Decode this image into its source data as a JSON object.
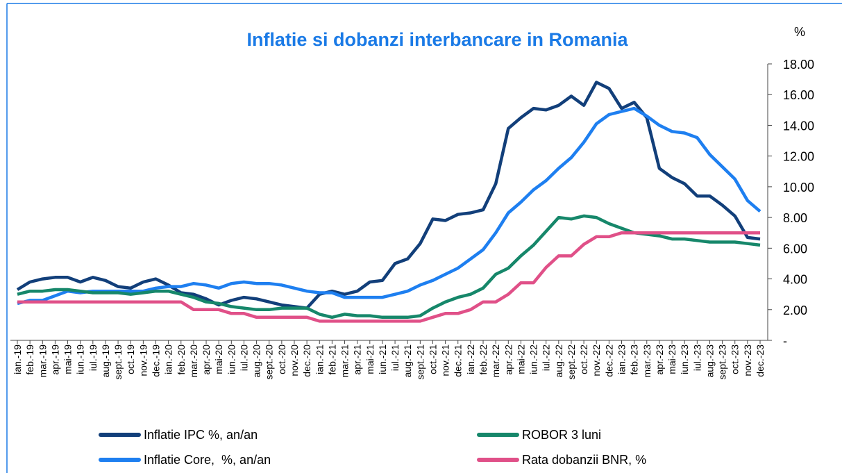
{
  "chart_data": {
    "type": "line",
    "title": "Inflatie si dobanzi interbancare in Romania",
    "ylabel": "%",
    "categories": [
      "ian.-19",
      "feb.-19",
      "mar.-19",
      "apr.-19",
      "mai-19",
      "iun.-19",
      "iul.-19",
      "aug.-19",
      "sept.-19",
      "oct.-19",
      "nov.-19",
      "dec.-19",
      "ian.-20",
      "feb.-20",
      "mar.-20",
      "apr.-20",
      "mai-20",
      "iun.-20",
      "iul.-20",
      "aug.-20",
      "sept.-20",
      "oct.-20",
      "nov.-20",
      "dec.-20",
      "ian.-21",
      "feb.-21",
      "mar.-21",
      "apr.-21",
      "mai-21",
      "iun.-21",
      "iul.-21",
      "aug.-21",
      "sept.-21",
      "oct.-21",
      "nov.-21",
      "dec.-21",
      "ian.-22",
      "feb.-22",
      "mar.-22",
      "apr.-22",
      "mai-22",
      "iun.-22",
      "iul.-22",
      "aug.-22",
      "sept.-22",
      "oct.-22",
      "nov.-22",
      "dec.-22",
      "ian.-23",
      "feb.-23",
      "mar.-23",
      "apr.-23",
      "mai-23",
      "iun.-23",
      "iul.-23",
      "aug.-23",
      "sept.-23",
      "oct.-23",
      "nov.-23",
      "dec.-23"
    ],
    "series": [
      {
        "name": "Inflatie IPC %, an/an",
        "color": "#123f7a",
        "values": [
          3.3,
          3.8,
          4.0,
          4.1,
          4.1,
          3.8,
          4.1,
          3.9,
          3.5,
          3.4,
          3.8,
          4.0,
          3.6,
          3.1,
          3.0,
          2.7,
          2.3,
          2.6,
          2.8,
          2.7,
          2.5,
          2.3,
          2.2,
          2.1,
          3.0,
          3.2,
          3.0,
          3.2,
          3.8,
          3.9,
          5.0,
          5.3,
          6.3,
          7.9,
          7.8,
          8.2,
          8.3,
          8.5,
          10.2,
          13.8,
          14.5,
          15.1,
          15.0,
          15.3,
          15.9,
          15.3,
          16.8,
          16.4,
          15.1,
          15.5,
          14.5,
          11.2,
          10.6,
          10.2,
          9.4,
          9.4,
          8.8,
          8.1,
          6.7,
          6.6
        ]
      },
      {
        "name": "Inflatie Core,  %, an/an",
        "color": "#1e7ff0",
        "values": [
          2.4,
          2.6,
          2.6,
          2.9,
          3.2,
          3.1,
          3.2,
          3.2,
          3.2,
          3.2,
          3.2,
          3.4,
          3.5,
          3.5,
          3.7,
          3.6,
          3.4,
          3.7,
          3.8,
          3.7,
          3.7,
          3.6,
          3.4,
          3.2,
          3.1,
          3.1,
          2.8,
          2.8,
          2.8,
          2.8,
          3.0,
          3.2,
          3.6,
          3.9,
          4.3,
          4.7,
          5.3,
          5.9,
          7.0,
          8.3,
          9.0,
          9.8,
          10.4,
          11.2,
          11.9,
          12.9,
          14.1,
          14.7,
          14.9,
          15.1,
          14.6,
          14.0,
          13.6,
          13.5,
          13.2,
          12.1,
          11.3,
          10.5,
          9.1,
          8.4
        ]
      },
      {
        "name": "ROBOR 3 luni",
        "color": "#16876a",
        "values": [
          3.0,
          3.2,
          3.2,
          3.3,
          3.3,
          3.2,
          3.1,
          3.1,
          3.1,
          3.0,
          3.1,
          3.2,
          3.2,
          3.0,
          2.8,
          2.5,
          2.4,
          2.2,
          2.1,
          2.0,
          2.0,
          2.1,
          2.1,
          2.1,
          1.7,
          1.5,
          1.7,
          1.6,
          1.6,
          1.5,
          1.5,
          1.5,
          1.6,
          2.1,
          2.5,
          2.8,
          3.0,
          3.4,
          4.3,
          4.7,
          5.5,
          6.2,
          7.1,
          8.0,
          7.9,
          8.1,
          8.0,
          7.6,
          7.3,
          7.0,
          6.9,
          6.8,
          6.6,
          6.6,
          6.5,
          6.4,
          6.4,
          6.4,
          6.3,
          6.2
        ]
      },
      {
        "name": "Rata dobanzii BNR, %",
        "color": "#e05088",
        "values": [
          2.5,
          2.5,
          2.5,
          2.5,
          2.5,
          2.5,
          2.5,
          2.5,
          2.5,
          2.5,
          2.5,
          2.5,
          2.5,
          2.5,
          2.0,
          2.0,
          2.0,
          1.75,
          1.75,
          1.5,
          1.5,
          1.5,
          1.5,
          1.5,
          1.25,
          1.25,
          1.25,
          1.25,
          1.25,
          1.25,
          1.25,
          1.25,
          1.25,
          1.5,
          1.75,
          1.75,
          2.0,
          2.5,
          2.5,
          3.0,
          3.75,
          3.75,
          4.75,
          5.5,
          5.5,
          6.25,
          6.75,
          6.75,
          7.0,
          7.0,
          7.0,
          7.0,
          7.0,
          7.0,
          7.0,
          7.0,
          7.0,
          7.0,
          7.0,
          7.0
        ]
      }
    ],
    "ylim": [
      0,
      18
    ],
    "yticks": [
      {
        "value": 0,
        "label": "-"
      },
      {
        "value": 2,
        "label": "2.00"
      },
      {
        "value": 4,
        "label": "4.00"
      },
      {
        "value": 6,
        "label": "6.00"
      },
      {
        "value": 8,
        "label": "8.00"
      },
      {
        "value": 10,
        "label": "10.00"
      },
      {
        "value": 12,
        "label": "12.00"
      },
      {
        "value": 14,
        "label": "14.00"
      },
      {
        "value": 16,
        "label": "16.00"
      },
      {
        "value": 18,
        "label": "18.00"
      }
    ],
    "title_color": "#1a7ae6"
  }
}
